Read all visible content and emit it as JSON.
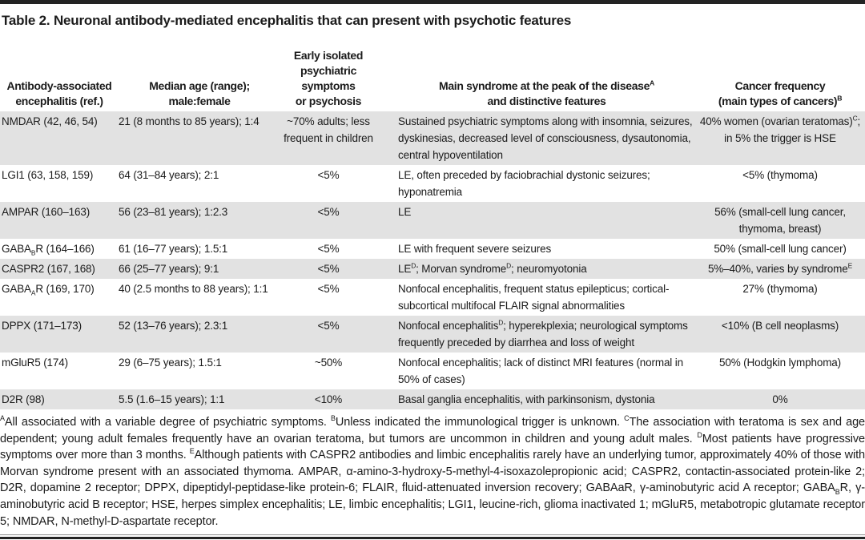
{
  "title": "Table 2. Neuronal antibody-mediated encephalitis that can present with psychotic features",
  "colors": {
    "row_stripe": "#e2e2e2",
    "rule_dark": "#232323",
    "rule_light": "#909090",
    "text": "#1b1b1b"
  },
  "table": {
    "headers": [
      "Antibody-associated\nencephalitis (ref.)",
      "Median age (range);\nmale:female",
      "Early isolated\npsychiatric symptoms\nor psychosis",
      "Main syndrome at the peak of the disease^{A}\nand distinctive features",
      "Cancer frequency\n(main types of cancers)^{B}"
    ],
    "rows": [
      {
        "antibody": "NMDAR (42, 46, 54)",
        "median_age": "21 (8 months to 85 years); 1:4",
        "early_psychiatric": "~70% adults; less frequent in children",
        "main_syndrome": "Sustained psychiatric symptoms along with insomnia, seizures, dyskinesias, decreased level of consciousness, dysautonomia, central hypoventilation",
        "cancer_frequency": "40% women (ovarian teratomas)^{C}; in 5% the trigger is HSE"
      },
      {
        "antibody": "LGI1 (63, 158, 159)",
        "median_age": "64 (31–84 years); 2:1",
        "early_psychiatric": "<5%",
        "main_syndrome": "LE, often preceded by faciobrachial dystonic seizures; hyponatremia",
        "cancer_frequency": "<5% (thymoma)"
      },
      {
        "antibody": "AMPAR (160–163)",
        "median_age": "56 (23–81 years); 1:2.3",
        "early_psychiatric": "<5%",
        "main_syndrome": "LE",
        "cancer_frequency": "56% (small-cell lung cancer, thymoma, breast)"
      },
      {
        "antibody": "GABA~{B}R (164–166)",
        "median_age": "61 (16–77 years); 1.5:1",
        "early_psychiatric": "<5%",
        "main_syndrome": "LE with frequent severe seizures",
        "cancer_frequency": "50% (small-cell lung cancer)"
      },
      {
        "antibody": "CASPR2 (167, 168)",
        "median_age": "66 (25–77 years); 9:1",
        "early_psychiatric": "<5%",
        "main_syndrome": "LE^{D}; Morvan syndrome^{D}; neuromyotonia",
        "cancer_frequency": "5%–40%, varies by syndrome^{E}"
      },
      {
        "antibody": "GABA~{A}R (169, 170)",
        "median_age": "40 (2.5 months to 88 years); 1:1",
        "early_psychiatric": "<5%",
        "main_syndrome": "Nonfocal encephalitis, frequent status epilepticus; cortical-subcortical multifocal FLAIR signal abnormalities",
        "cancer_frequency": "27% (thymoma)"
      },
      {
        "antibody": "DPPX (171–173)",
        "median_age": "52 (13–76 years); 2.3:1",
        "early_psychiatric": "<5%",
        "main_syndrome": "Nonfocal encephalitis^{D}; hyperekplexia; neurological symptoms frequently preceded by diarrhea and loss of weight",
        "cancer_frequency": "<10% (B cell neoplasms)"
      },
      {
        "antibody": "mGluR5 (174)",
        "median_age": "29 (6–75 years); 1.5:1",
        "early_psychiatric": "~50%",
        "main_syndrome": "Nonfocal encephalitis; lack of distinct MRI features (normal in 50% of cases)",
        "cancer_frequency": "50% (Hodgkin lymphoma)"
      },
      {
        "antibody": "D2R (98)",
        "median_age": "5.5 (1.6–15 years); 1:1",
        "early_psychiatric": "<10%",
        "main_syndrome": "Basal ganglia encephalitis, with parkinsonism, dystonia",
        "cancer_frequency": "0%"
      }
    ]
  },
  "footnotes": "^{A}All associated with a variable degree of psychiatric symptoms. ^{B}Unless indicated the immunological trigger is unknown. ^{C}The association with teratoma is sex and age dependent; young adult females frequently have an ovarian teratoma, but tumors are uncommon in children and young adult males. ^{D}Most patients have progressive symptoms over more than 3 months. ^{E}Although patients with CASPR2 antibodies and limbic encephalitis rarely have an underlying tumor, approximately 40% of those with Morvan syndrome present with an associated thymoma. AMPAR, α-amino-3-hydroxy-5-methyl-4-isoxazolepropionic acid; CASPR2, contactin-associated protein-like 2; D2R, dopamine 2 receptor; DPPX, dipeptidyl-peptidase-like protein-6; FLAIR, fluid-attenuated inversion recovery; GABAaR, γ-aminobutyric acid A receptor; GABA~{B}R, γ-aminobutyric acid B receptor; HSE, herpes simplex encephalitis; LE, limbic encephalitis; LGI1, leucine-rich, glioma inactivated 1; mGluR5, metabotropic glutamate receptor 5; NMDAR, N-methyl-D-aspartate receptor."
}
